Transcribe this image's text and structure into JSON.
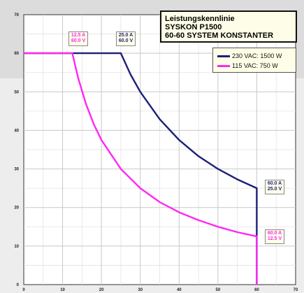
{
  "chart_data": {
    "type": "line",
    "title": [
      "Leistungskennlinie",
      "SYSKON P1500",
      "60-60 SYSTEM KONSTANTER"
    ],
    "xlim": [
      0,
      70
    ],
    "ylim": [
      0,
      70
    ],
    "x_ticks": [
      0,
      10,
      20,
      30,
      40,
      50,
      60,
      70
    ],
    "y_ticks": [
      0,
      10,
      20,
      30,
      40,
      50,
      60,
      70
    ],
    "grid": true,
    "legend_position": "top-right",
    "series": [
      {
        "name": "230 VAC: 1500 W",
        "color": "#1c1f78",
        "power_w": 1500,
        "points": [
          [
            0,
            60
          ],
          [
            25,
            60
          ],
          [
            27.5,
            54.5
          ],
          [
            30,
            50
          ],
          [
            35,
            42.9
          ],
          [
            40,
            37.5
          ],
          [
            45,
            33.3
          ],
          [
            50,
            30
          ],
          [
            55,
            27.3
          ],
          [
            60,
            25
          ],
          [
            60,
            0
          ]
        ]
      },
      {
        "name": "115 VAC: 750 W",
        "color": "#ff27f2",
        "power_w": 750,
        "points": [
          [
            0,
            60
          ],
          [
            12.5,
            60
          ],
          [
            14,
            53.6
          ],
          [
            16,
            46.9
          ],
          [
            18,
            41.7
          ],
          [
            20,
            37.5
          ],
          [
            25,
            30
          ],
          [
            30,
            25
          ],
          [
            35,
            21.4
          ],
          [
            40,
            18.75
          ],
          [
            45,
            16.7
          ],
          [
            50,
            15
          ],
          [
            55,
            13.6
          ],
          [
            60,
            12.5
          ],
          [
            60,
            0
          ]
        ]
      }
    ],
    "annotations": [
      {
        "id": "magenta-corner",
        "lines": [
          "12.5 A",
          "60.0 V"
        ],
        "color": "#ff27f2"
      },
      {
        "id": "navy-corner",
        "lines": [
          "25.0 A",
          "60.0 V"
        ],
        "color": "#1c1f78"
      },
      {
        "id": "navy-end",
        "lines": [
          "60.0 A",
          "25.0 V"
        ],
        "color": "#1c1f78"
      },
      {
        "id": "magenta-end",
        "lines": [
          "60.0 A",
          "12.5 V"
        ],
        "color": "#ff27f2"
      }
    ]
  }
}
